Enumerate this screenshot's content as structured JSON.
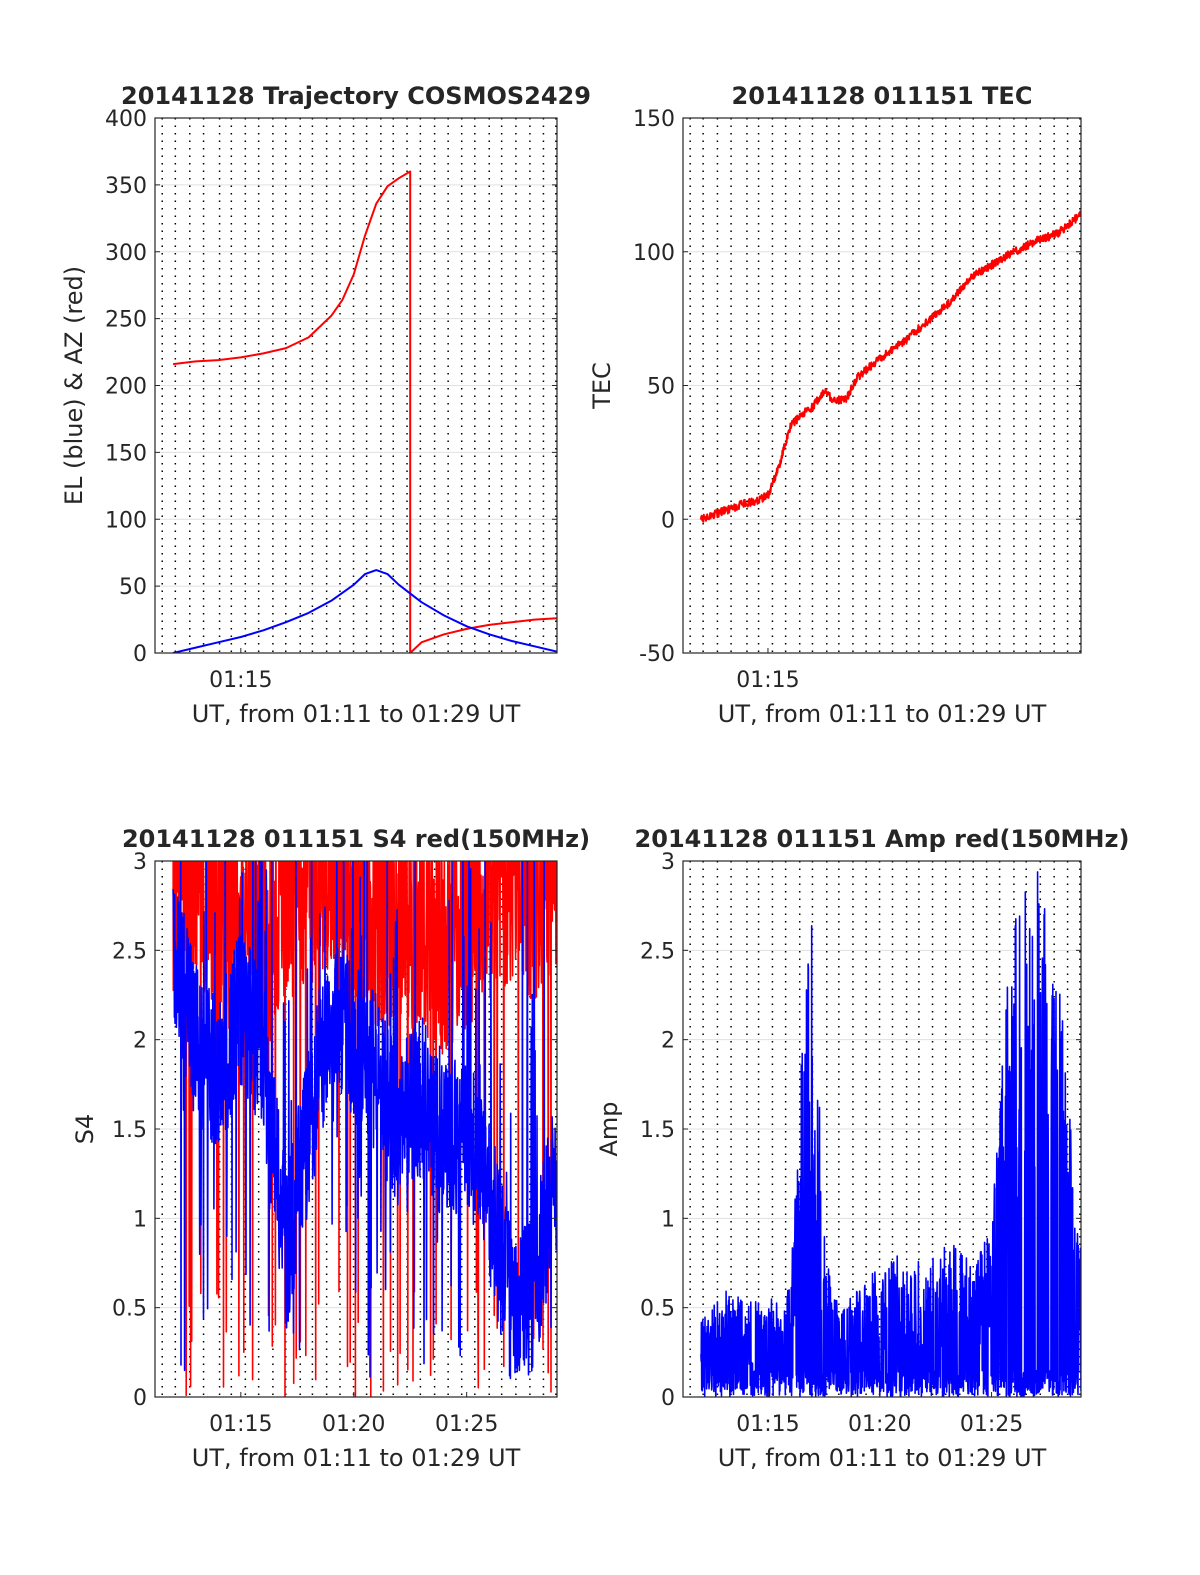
{
  "chart_data": [
    {
      "type": "line",
      "title": "20141128 Trajectory COSMOS2429",
      "xlabel": "UT, from 01:11 to 01:29 UT",
      "ylabel": "EL (blue) & AZ (red)",
      "xlim": [
        "01:11:12",
        "01:29:00"
      ],
      "ylim": [
        0,
        400
      ],
      "yticks": [
        0,
        50,
        100,
        150,
        200,
        250,
        300,
        350,
        400
      ],
      "xtick_labels": [
        "01:15"
      ],
      "grid": true,
      "series": [
        {
          "color": "#ff0000",
          "x": [
            "01:12",
            "01:13",
            "01:14",
            "01:15",
            "01:16",
            "01:17",
            "01:18",
            "01:19",
            "01:19:30",
            "01:20",
            "01:20:30",
            "01:21",
            "01:21:30",
            "01:22",
            "01:22:30",
            "01:22:30",
            "01:23",
            "01:24",
            "01:25",
            "01:26",
            "01:27",
            "01:28",
            "01:29"
          ],
          "values": [
            216,
            218,
            219,
            221,
            224,
            228,
            236,
            252,
            264,
            283,
            312,
            336,
            349,
            355,
            360,
            0,
            8,
            14,
            18,
            21,
            23,
            25,
            26
          ]
        },
        {
          "color": "#0000ff",
          "x": [
            "01:12",
            "01:13",
            "01:14",
            "01:15",
            "01:16",
            "01:17",
            "01:18",
            "01:19",
            "01:20",
            "01:20:30",
            "01:21",
            "01:21:30",
            "01:22",
            "01:23",
            "01:24",
            "01:25",
            "01:26",
            "01:27",
            "01:28",
            "01:29"
          ],
          "values": [
            0,
            4,
            8,
            12,
            17,
            23,
            30,
            39,
            51,
            59,
            62,
            59,
            51,
            38,
            28,
            20,
            14,
            9,
            5,
            1
          ]
        }
      ]
    },
    {
      "type": "line",
      "title": "20141128 011151 TEC",
      "xlabel": "UT, from 01:11 to 01:29 UT",
      "ylabel": "TEC",
      "xlim": [
        "01:11:12",
        "01:29:00"
      ],
      "ylim": [
        -50,
        150
      ],
      "yticks": [
        -50,
        0,
        50,
        100,
        150
      ],
      "xtick_labels": [
        "01:15"
      ],
      "grid": true,
      "series": [
        {
          "color": "#ff0000",
          "x": [
            "01:12",
            "01:13",
            "01:14",
            "01:14:30",
            "01:15",
            "01:15:30",
            "01:16",
            "01:16:30",
            "01:17",
            "01:17:30",
            "01:18",
            "01:18:30",
            "01:19",
            "01:20",
            "01:21",
            "01:22",
            "01:23",
            "01:24",
            "01:25",
            "01:26",
            "01:27",
            "01:28",
            "01:29"
          ],
          "values": [
            0,
            3,
            6,
            7,
            9,
            20,
            35,
            39,
            42,
            48,
            44,
            45,
            53,
            60,
            66,
            73,
            80,
            90,
            95,
            100,
            104,
            107,
            114
          ]
        }
      ]
    },
    {
      "type": "line",
      "title": "20141128 011151 S4 red(150MHz)",
      "xlabel": "UT, from 01:11 to 01:29 UT",
      "ylabel": "S4",
      "xlim": [
        "01:11:12",
        "01:29:00"
      ],
      "ylim": [
        0,
        3
      ],
      "yticks": [
        0,
        0.5,
        1,
        1.5,
        2,
        2.5,
        3
      ],
      "xtick_labels": [
        "01:15",
        "01:20",
        "01:25"
      ],
      "grid": true,
      "series": [
        {
          "color": "#ff0000",
          "x": [
            "01:12",
            "01:13",
            "01:14",
            "01:15",
            "01:16",
            "01:17",
            "01:18",
            "01:19",
            "01:20",
            "01:21",
            "01:22",
            "01:23",
            "01:24",
            "01:25",
            "01:26",
            "01:27",
            "01:28",
            "01:29"
          ],
          "values": [
            2.6,
            2.8,
            2.4,
            2.5,
            2.2,
            2.6,
            2.7,
            2.8,
            2.6,
            2.4,
            2.5,
            2.4,
            2.3,
            2.4,
            2.6,
            2.7,
            2.6,
            2.8
          ]
        },
        {
          "color": "#0000ff",
          "x": [
            "01:12",
            "01:13",
            "01:14",
            "01:15",
            "01:16",
            "01:17",
            "01:18",
            "01:19",
            "01:20",
            "01:21",
            "01:22",
            "01:23",
            "01:24",
            "01:25",
            "01:26",
            "01:27",
            "01:28",
            "01:29"
          ],
          "values": [
            2.5,
            2.0,
            1.8,
            2.2,
            1.9,
            0.8,
            1.5,
            2.2,
            2.0,
            1.8,
            1.5,
            1.7,
            1.4,
            1.5,
            1.1,
            0.5,
            0.6,
            1.3
          ]
        }
      ]
    },
    {
      "type": "line",
      "title": "20141128 011151 Amp red(150MHz)",
      "xlabel": "UT, from 01:11 to 01:29 UT",
      "ylabel": "Amp",
      "xlim": [
        "01:11:12",
        "01:29:00"
      ],
      "ylim": [
        0,
        3
      ],
      "yticks": [
        0,
        0.5,
        1,
        1.5,
        2,
        2.5,
        3
      ],
      "xtick_labels": [
        "01:15",
        "01:20",
        "01:25"
      ],
      "grid": true,
      "series": [
        {
          "color": "#0000ff",
          "x": [
            "01:12",
            "01:13",
            "01:14",
            "01:15",
            "01:16",
            "01:16:30",
            "01:17",
            "01:17:30",
            "01:18",
            "01:19",
            "01:20",
            "01:21",
            "01:22",
            "01:23",
            "01:24",
            "01:25",
            "01:25:30",
            "01:26",
            "01:27",
            "01:28",
            "01:29"
          ],
          "values": [
            0.35,
            0.45,
            0.4,
            0.4,
            0.45,
            1.5,
            2.0,
            0.7,
            0.4,
            0.45,
            0.55,
            0.6,
            0.55,
            0.65,
            0.6,
            0.7,
            1.5,
            2.0,
            2.2,
            1.8,
            0.6
          ]
        }
      ]
    }
  ]
}
